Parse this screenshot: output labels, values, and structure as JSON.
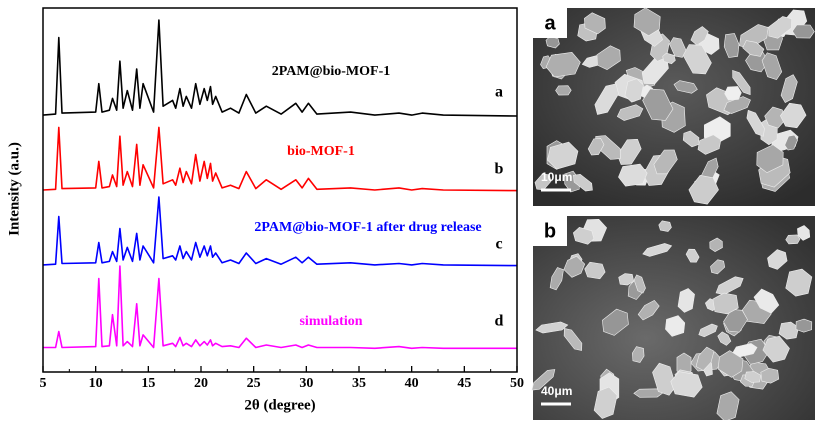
{
  "chart_data": {
    "type": "line",
    "xlabel": "2θ (degree)",
    "ylabel": "Intensity (a.u.)",
    "xlim": [
      5,
      50
    ],
    "xticks": [
      5,
      10,
      15,
      20,
      25,
      30,
      35,
      40,
      45,
      50
    ],
    "ylim": [
      0,
      100
    ],
    "x": [
      5,
      6.2,
      6.5,
      6.8,
      10.0,
      10.3,
      10.6,
      11.3,
      11.6,
      12.0,
      12.3,
      12.6,
      13.0,
      13.5,
      13.9,
      14.2,
      14.5,
      15.5,
      16.0,
      16.4,
      17.3,
      17.6,
      18.0,
      18.3,
      18.6,
      19.1,
      19.5,
      19.9,
      20.3,
      20.6,
      20.9,
      21.1,
      21.4,
      22.0,
      22.8,
      23.6,
      24.3,
      25.2,
      26.2,
      27.6,
      29.0,
      29.6,
      30.2,
      31.0,
      34.2,
      36.5,
      38.8,
      40.0,
      41.0,
      43.0,
      50
    ],
    "series": [
      {
        "name": "2PAM@bio-MOF-1",
        "tag": "a",
        "color": "#000000",
        "values": [
          3,
          4,
          82,
          5,
          6,
          35,
          6,
          8,
          20,
          8,
          58,
          10,
          28,
          8,
          50,
          10,
          35,
          6,
          100,
          12,
          18,
          10,
          30,
          12,
          22,
          10,
          35,
          14,
          30,
          18,
          32,
          14,
          22,
          6,
          10,
          5,
          24,
          5,
          12,
          4,
          15,
          6,
          15,
          4,
          6,
          3,
          5,
          3,
          5,
          3,
          2
        ]
      },
      {
        "name": "bio-MOF-1",
        "tag": "b",
        "color": "#ff0000",
        "values": [
          3,
          4,
          95,
          5,
          6,
          45,
          6,
          8,
          25,
          8,
          82,
          10,
          30,
          8,
          70,
          10,
          40,
          6,
          95,
          12,
          18,
          10,
          35,
          14,
          30,
          12,
          55,
          16,
          45,
          20,
          42,
          16,
          28,
          6,
          10,
          5,
          30,
          5,
          18,
          4,
          18,
          6,
          20,
          4,
          6,
          3,
          6,
          3,
          5,
          3,
          2
        ]
      },
      {
        "name": "2PAM@bio-MOF-1 after drug release",
        "tag": "c",
        "color": "#0000ff",
        "values": [
          3,
          4,
          72,
          5,
          6,
          35,
          6,
          8,
          22,
          8,
          55,
          10,
          28,
          8,
          48,
          10,
          30,
          6,
          100,
          12,
          16,
          10,
          30,
          12,
          22,
          10,
          35,
          14,
          30,
          16,
          30,
          14,
          20,
          6,
          10,
          5,
          20,
          5,
          12,
          4,
          14,
          6,
          14,
          4,
          6,
          3,
          5,
          3,
          5,
          3,
          2
        ]
      },
      {
        "name": "simulation",
        "tag": "d",
        "color": "#ff00ff",
        "values": [
          3,
          3,
          22,
          3,
          4,
          85,
          4,
          5,
          42,
          5,
          100,
          5,
          10,
          4,
          55,
          5,
          18,
          3,
          85,
          5,
          8,
          4,
          15,
          5,
          8,
          4,
          12,
          5,
          10,
          6,
          12,
          5,
          8,
          4,
          5,
          3,
          14,
          3,
          6,
          3,
          6,
          3,
          6,
          3,
          3,
          2,
          4,
          2,
          3,
          2,
          2
        ]
      }
    ]
  },
  "images": [
    {
      "label": "a",
      "scale_bar": "10μm"
    },
    {
      "label": "b",
      "scale_bar": "40μm"
    }
  ]
}
